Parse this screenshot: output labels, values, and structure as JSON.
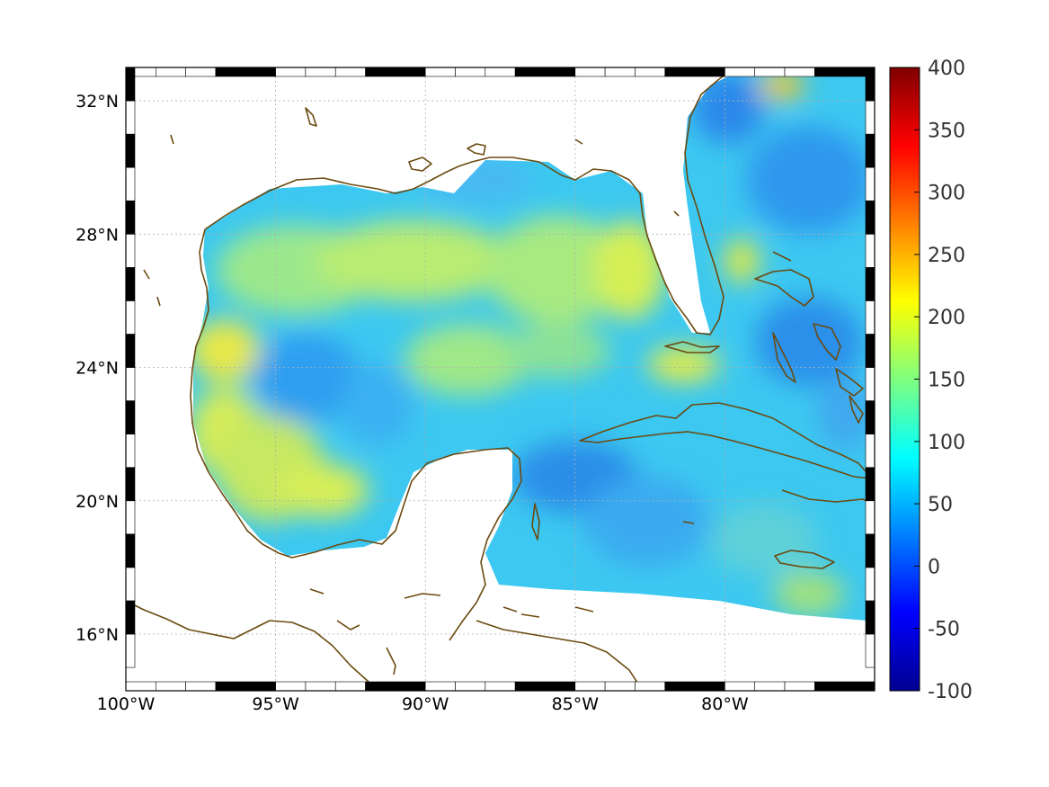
{
  "map": {
    "lon_range": [
      -100,
      -75
    ],
    "lat_range": [
      14.3,
      33
    ],
    "lon_ticks": [
      {
        "value": -100,
        "label": "100°W"
      },
      {
        "value": -95,
        "label": "95°W"
      },
      {
        "value": -90,
        "label": "90°W"
      },
      {
        "value": -85,
        "label": "85°W"
      },
      {
        "value": -80,
        "label": "80°W"
      }
    ],
    "lat_ticks": [
      {
        "value": 32,
        "label": "32°N"
      },
      {
        "value": 28,
        "label": "28°N"
      },
      {
        "value": 24,
        "label": "24°N"
      },
      {
        "value": 20,
        "label": "20°N"
      },
      {
        "value": 16,
        "label": "16°N"
      }
    ],
    "grid": "dotted",
    "coastline_color": "#6b4a10",
    "land_color": "#ffffff",
    "colormap": "jet",
    "field_description_hidden": true
  },
  "colorbar": {
    "min": -100,
    "max": 400,
    "ticks": [
      "400",
      "350",
      "300",
      "250",
      "200",
      "150",
      "100",
      "50",
      "0",
      "-50",
      "-100"
    ],
    "tick_values": [
      400,
      350,
      300,
      250,
      200,
      150,
      100,
      50,
      0,
      -50,
      -100
    ]
  }
}
